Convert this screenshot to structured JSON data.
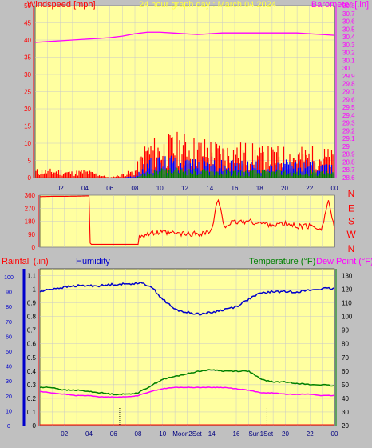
{
  "header": {
    "title": "24 hour graph day : March 04 2024",
    "title_color": "#ffff40"
  },
  "colors": {
    "background": "#c0c0c0",
    "plot_bg": "#ffffa0",
    "grid": "#c8c8c8",
    "wind_color": "#ff0000",
    "gust_color": "#0000ff",
    "avg_color": "#008000",
    "baro_color": "#ff00ff",
    "dir_color": "#ff0000",
    "rain_color": "#ff0000",
    "humidity_color": "#0000cc",
    "temp_color": "#008000",
    "dew_color": "#ff00ff"
  },
  "chart_data": [
    {
      "type": "line",
      "title": "24 hour graph day : March 04 2024",
      "ylabel": "Windspeed [mph]",
      "y2label": "Barometer [.in]",
      "x_tick_labels": [
        "02",
        "04",
        "06",
        "08",
        "10",
        "12",
        "14",
        "16",
        "18",
        "20",
        "22",
        "00"
      ],
      "y_ticks": [
        0,
        5,
        10,
        15,
        20,
        25,
        30,
        35,
        40,
        45,
        50
      ],
      "ylim": [
        0,
        50
      ],
      "y2_ticks": [
        "28.6",
        "28.7",
        "28.8",
        "28.9",
        "29",
        "29.1",
        "29.2",
        "29.3",
        "29.4",
        "29.5",
        "29.6",
        "29.7",
        "29.8",
        "29.9",
        "30",
        "30.1",
        "30.2",
        "30.3",
        "30.4",
        "30.5",
        "30.6",
        "30.7",
        "30.8"
      ],
      "y2lim": [
        28.6,
        30.8
      ],
      "x_hours": [
        0,
        1,
        2,
        3,
        4,
        5,
        6,
        7,
        8,
        9,
        10,
        11,
        12,
        13,
        14,
        15,
        16,
        17,
        18,
        19,
        20,
        21,
        22,
        23,
        24
      ],
      "series": [
        {
          "name": "Windspeed",
          "axis": "left",
          "values": [
            2,
            2,
            2,
            1.5,
            2,
            1,
            0,
            1,
            2,
            9,
            9,
            10,
            10,
            9,
            9,
            8,
            8,
            8,
            7,
            7,
            7,
            7,
            7,
            7,
            6
          ]
        },
        {
          "axis": "left",
          "values": [
            0,
            0,
            0,
            0,
            0,
            0,
            0,
            0,
            0.5,
            4,
            5,
            5,
            5,
            4,
            5,
            4,
            4,
            4,
            4,
            3,
            4,
            4,
            4,
            3,
            3
          ]
        },
        {
          "axis": "left",
          "values": [
            0,
            0,
            0,
            0,
            0,
            0,
            0,
            0,
            0,
            1.5,
            2,
            2.2,
            2.2,
            2,
            2,
            1.8,
            1.8,
            1.8,
            1.7,
            1.6,
            1.7,
            1.6,
            1.6,
            1.5,
            1.4
          ]
        },
        {
          "name": "Barometer",
          "axis": "right",
          "values": [
            30.33,
            30.34,
            30.35,
            30.36,
            30.37,
            30.38,
            30.39,
            30.41,
            30.44,
            30.46,
            30.46,
            30.45,
            30.44,
            30.43,
            30.44,
            30.45,
            30.45,
            30.45,
            30.45,
            30.45,
            30.45,
            30.45,
            30.44,
            30.43,
            30.42
          ]
        }
      ]
    },
    {
      "type": "line",
      "right_labels": [
        "N",
        "W",
        "S",
        "E",
        "N"
      ],
      "y_ticks": [
        0,
        90,
        180,
        270,
        360
      ],
      "ylim": [
        0,
        360
      ],
      "x_hours": [
        0,
        1,
        2,
        3,
        4,
        4.1,
        5,
        6,
        7,
        8,
        8.1,
        9,
        10,
        11,
        12,
        13,
        14,
        14.5,
        15,
        16,
        17,
        18,
        19,
        20,
        21,
        22,
        23,
        23.5,
        24
      ],
      "series": [
        {
          "name": "Direction",
          "values": [
            350,
            352,
            352,
            353,
            355,
            20,
            20,
            20,
            20,
            20,
            80,
            95,
            100,
            95,
            90,
            95,
            110,
            340,
            150,
            175,
            180,
            165,
            155,
            160,
            145,
            145,
            135,
            330,
            130
          ]
        }
      ]
    },
    {
      "type": "line",
      "ylabel": "Rainfall (.in)",
      "ylabel2": "Humidity",
      "y2label": "Temperature (°F)",
      "y2label2": "Dew Point (°F)",
      "x_tick_labels": [
        "02",
        "04",
        "06",
        "08",
        "10",
        "Moon2Set",
        "14",
        "16",
        "Sun1Set",
        "20",
        "22",
        "00"
      ],
      "y_ticks": [
        "0",
        "0.1",
        "0.2",
        "0.3",
        "0.4",
        "0.5",
        "0.6",
        "0.7",
        "0.8",
        "0.9",
        "1",
        "1.1"
      ],
      "ylim": [
        0,
        1.15
      ],
      "humidity_ticks": [
        0,
        10,
        20,
        30,
        40,
        50,
        60,
        70,
        80,
        90,
        100
      ],
      "humidity_lim": [
        0,
        100
      ],
      "temp_ticks": [
        20,
        30,
        40,
        50,
        60,
        70,
        80,
        90,
        100,
        110,
        120,
        130
      ],
      "temp_lim": [
        20,
        135
      ],
      "event_hours": [
        6.5,
        18.5
      ],
      "x_hours": [
        0,
        1,
        2,
        3,
        4,
        5,
        6,
        7,
        8,
        9,
        10,
        11,
        12,
        13,
        14,
        15,
        16,
        17,
        18,
        19,
        20,
        21,
        22,
        23,
        24
      ],
      "series": [
        {
          "name": "Humidity",
          "axis": "humidity",
          "values": [
            90,
            92,
            93,
            94,
            94,
            94,
            95,
            95,
            96,
            94,
            85,
            78,
            76,
            75,
            76,
            78,
            80,
            85,
            89,
            90,
            90,
            90,
            91,
            92,
            92
          ]
        },
        {
          "name": "Temperature",
          "axis": "temp",
          "values": [
            48,
            48,
            46,
            46,
            45,
            44,
            43,
            43,
            44,
            49,
            54,
            56,
            58,
            60,
            61,
            60,
            60,
            60,
            54,
            52,
            52,
            51,
            50,
            50,
            49
          ]
        },
        {
          "name": "Dew Point",
          "axis": "temp",
          "values": [
            45,
            44,
            43,
            42,
            42,
            41,
            41,
            41,
            42,
            45,
            47,
            48,
            48,
            48,
            48,
            48,
            47,
            46,
            44,
            44,
            43,
            43,
            43,
            42,
            42
          ]
        },
        {
          "name": "Rainfall",
          "axis": "left",
          "values": [
            0,
            0,
            0,
            0,
            0,
            0,
            0,
            0,
            0,
            0,
            0,
            0,
            0,
            0,
            0,
            0,
            0,
            0,
            0,
            0,
            0,
            0,
            0,
            0,
            0
          ]
        }
      ]
    }
  ]
}
